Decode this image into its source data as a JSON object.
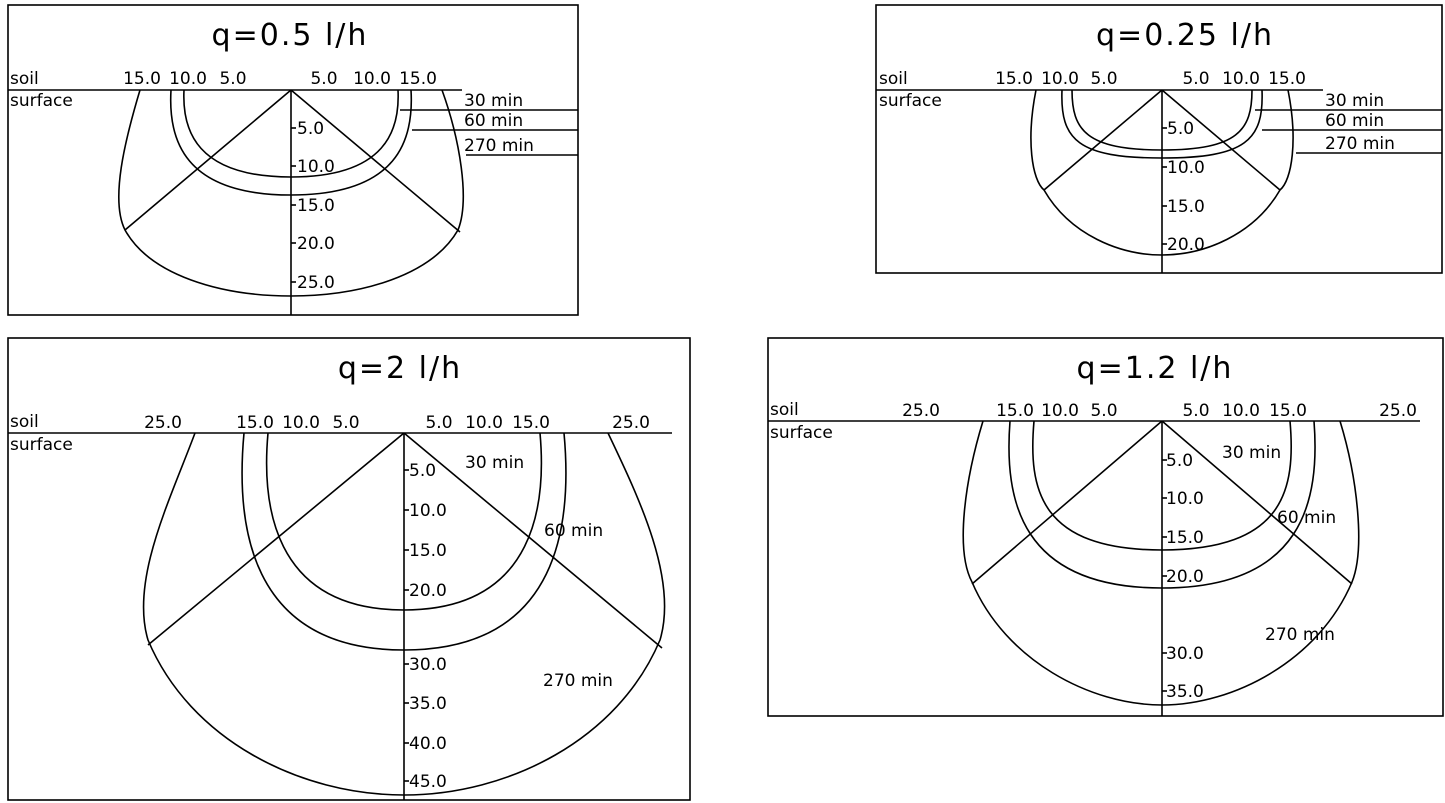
{
  "panels": [
    {
      "id": "q05",
      "title": "q=0.5  l/h",
      "surface_label_1": "soil",
      "surface_label_2": "surface",
      "horizontal_ticks": [
        "15.0",
        "10.0",
        "5.0",
        "5.0",
        "10.0",
        "15.0"
      ],
      "depth_ticks": [
        "5.0",
        "10.0",
        "15.0",
        "20.0",
        "25.0"
      ],
      "time_labels": [
        "30  min",
        "60  min",
        "270  min"
      ]
    },
    {
      "id": "q025",
      "title": "q=0.25  l/h",
      "surface_label_1": "soil",
      "surface_label_2": "surface",
      "horizontal_ticks": [
        "15.0",
        "10.0",
        "5.0",
        "5.0",
        "10.0",
        "15.0"
      ],
      "depth_ticks": [
        "5.0",
        "10.0",
        "15.0",
        "20.0"
      ],
      "time_labels": [
        "30  min",
        "60  min",
        "270  min"
      ]
    },
    {
      "id": "q2",
      "title": "q=2  l/h",
      "surface_label_1": "soil",
      "surface_label_2": "surface",
      "horizontal_ticks": [
        "25.0",
        "15.0",
        "10.0",
        "5.0",
        "5.0",
        "10.0",
        "15.0",
        "25.0"
      ],
      "depth_ticks": [
        "5.0",
        "10.0",
        "15.0",
        "20.0",
        "30.0",
        "35.0",
        "40.0",
        "45.0"
      ],
      "time_labels": [
        "30  min",
        "60  min",
        "270  min"
      ]
    },
    {
      "id": "q12",
      "title": "q=1.2  l/h",
      "surface_label_1": "soil",
      "surface_label_2": "surface",
      "horizontal_ticks": [
        "25.0",
        "15.0",
        "10.0",
        "5.0",
        "5.0",
        "10.0",
        "15.0",
        "25.0"
      ],
      "depth_ticks": [
        "5.0",
        "10.0",
        "15.0",
        "20.0",
        "30.0",
        "35.0"
      ],
      "time_labels": [
        "30  min",
        "60  min",
        "270  min"
      ]
    }
  ]
}
